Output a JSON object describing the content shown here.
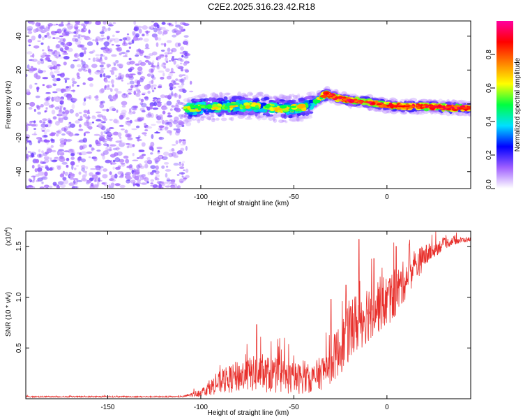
{
  "title": "C2E2.2025.316.23.42.R18",
  "chart_data": [
    {
      "type": "heatmap",
      "title": "C2E2.2025.316.23.42.R18",
      "xlabel": "Height of straight line (km)",
      "ylabel": "Frequency (Hz)",
      "xlim": [
        -194,
        45
      ],
      "ylim": [
        -50,
        49
      ],
      "xticks": [
        -150,
        -100,
        -50,
        0
      ],
      "xtick_labels": [
        "-150",
        "-100",
        "-50",
        "0"
      ],
      "yticks": [
        -40,
        -20,
        0,
        20,
        40
      ],
      "ytick_labels": [
        "-40",
        "-20",
        "0",
        "20",
        "40"
      ],
      "grid": false,
      "noise_region_km": [
        -194,
        -107
      ],
      "ridge": {
        "x": [
          -108,
          -95,
          -80,
          -65,
          -55,
          -45,
          -40,
          -35,
          -32,
          -28,
          -20,
          -10,
          0,
          10,
          20,
          30,
          45
        ],
        "y": [
          -3,
          -2,
          -1,
          -1.5,
          -3,
          -2,
          0,
          4,
          6,
          4,
          2,
          1,
          -1,
          -1.5,
          -1.5,
          -2,
          -2.5
        ]
      },
      "colorbar": {
        "label": "Normalized spectral amplitude",
        "range": [
          0,
          1
        ],
        "ticks": [
          0.0,
          0.2,
          0.4,
          0.6,
          0.8
        ],
        "tick_labels": [
          "0.0",
          "0.2",
          "0.4",
          "0.6",
          "0.8"
        ],
        "colors": [
          "#ffffff",
          "#a060ff",
          "#0000ff",
          "#00e0ff",
          "#00ff40",
          "#ffff00",
          "#ff8000",
          "#ff0000",
          "#ff00a0"
        ]
      }
    },
    {
      "type": "line",
      "xlabel": "Height of straight line (km)",
      "ylabel": "SNR (10 * v/v)",
      "multiplier_label": "(x10",
      "multiplier_exp": "4",
      "xlim": [
        -194,
        45
      ],
      "ylim": [
        0,
        1.65
      ],
      "xticks": [
        -150,
        -100,
        -50,
        0
      ],
      "xtick_labels": [
        "-150",
        "-100",
        "-50",
        "0"
      ],
      "yticks": [
        0.5,
        1.0,
        1.5
      ],
      "ytick_labels": [
        "0.5",
        "1.0",
        "1.5"
      ],
      "grid": false,
      "series": [
        {
          "name": "SNR",
          "color": "#e8302c",
          "trend_x": [
            -194,
            -110,
            -100,
            -90,
            -80,
            -70,
            -60,
            -50,
            -40,
            -35,
            -30,
            -25,
            -20,
            -15,
            -10,
            -5,
            0,
            5,
            10,
            15,
            20,
            25,
            30,
            35,
            40,
            45
          ],
          "trend_y": [
            0.02,
            0.02,
            0.06,
            0.16,
            0.22,
            0.25,
            0.23,
            0.2,
            0.2,
            0.26,
            0.36,
            0.5,
            0.66,
            0.78,
            0.86,
            0.92,
            0.96,
            1.04,
            1.18,
            1.3,
            1.4,
            1.46,
            1.52,
            1.55,
            1.56,
            1.57
          ],
          "spread_x": [
            -194,
            -110,
            -100,
            -90,
            -80,
            -70,
            -60,
            -50,
            -40,
            -35,
            -30,
            -25,
            -20,
            -15,
            -10,
            -5,
            0,
            5,
            10,
            15,
            20,
            25,
            30,
            35,
            40,
            45
          ],
          "spread_y": [
            0.006,
            0.006,
            0.04,
            0.11,
            0.16,
            0.18,
            0.18,
            0.16,
            0.14,
            0.17,
            0.22,
            0.26,
            0.3,
            0.32,
            0.3,
            0.28,
            0.26,
            0.24,
            0.2,
            0.16,
            0.12,
            0.08,
            0.06,
            0.04,
            0.03,
            0.02
          ],
          "peaks": [
            {
              "x": -70,
              "y": 0.73
            },
            {
              "x": -55,
              "y": 0.6
            },
            {
              "x": -30,
              "y": 0.98
            },
            {
              "x": -22,
              "y": 1.12
            },
            {
              "x": -15,
              "y": 1.57
            },
            {
              "x": -7,
              "y": 1.38
            },
            {
              "x": 5,
              "y": 1.5
            },
            {
              "x": 12,
              "y": 1.52
            }
          ]
        }
      ]
    }
  ]
}
